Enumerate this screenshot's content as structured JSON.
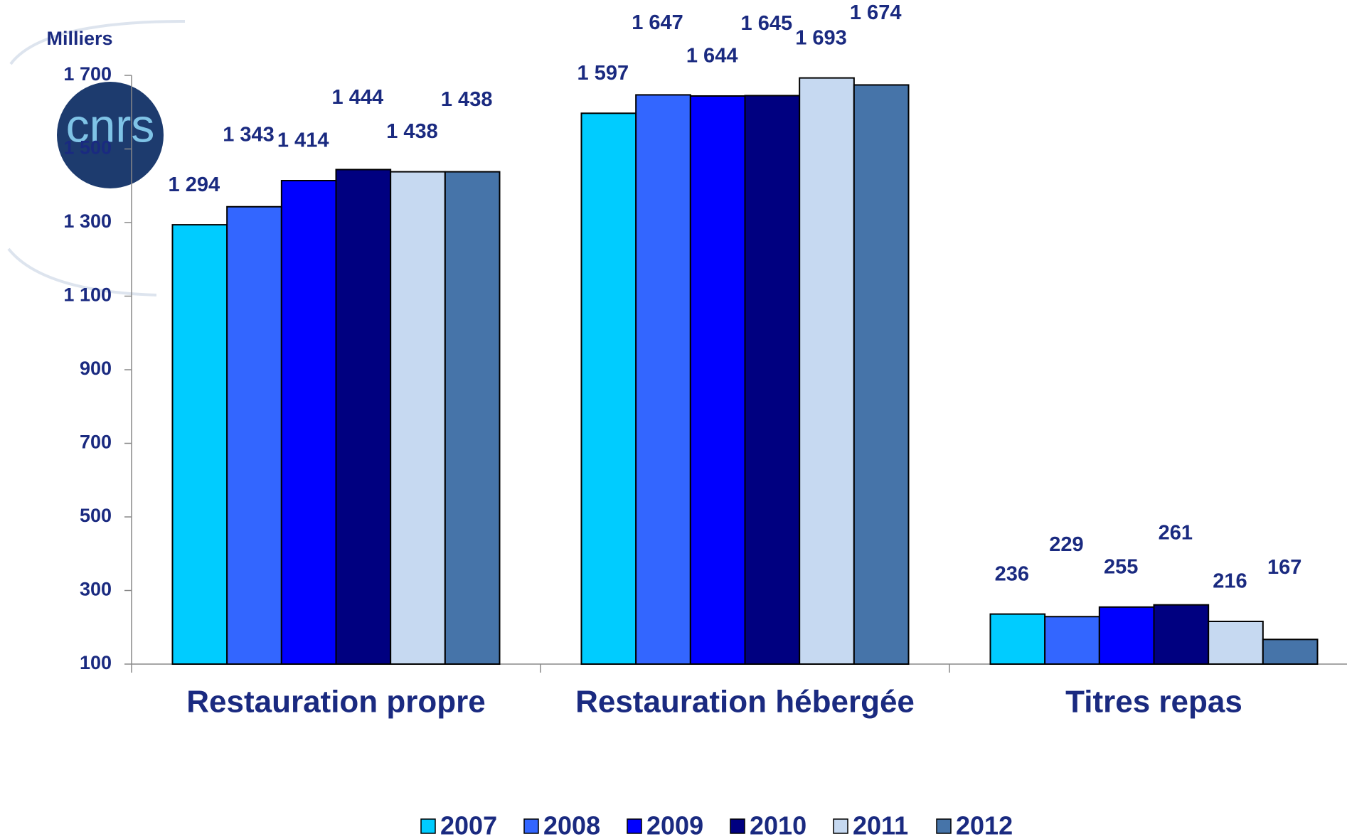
{
  "logo": "cnrs",
  "chart_data": {
    "type": "bar",
    "y_label": "Milliers",
    "categories": [
      "Restauration propre",
      "Restauration hébergée",
      "Titres repas"
    ],
    "series": [
      {
        "name": "2007",
        "color": "#00ccff",
        "values": [
          1294,
          1597,
          236
        ],
        "value_labels": [
          "1 294",
          "1 597",
          "236"
        ]
      },
      {
        "name": "2008",
        "color": "#3366ff",
        "values": [
          1343,
          1647,
          229
        ],
        "value_labels": [
          "1 343",
          "1 647",
          "229"
        ]
      },
      {
        "name": "2009",
        "color": "#0000ff",
        "values": [
          1414,
          1644,
          255
        ],
        "value_labels": [
          "1 414",
          "1 644",
          "255"
        ]
      },
      {
        "name": "2010",
        "color": "#000080",
        "values": [
          1444,
          1645,
          261
        ],
        "value_labels": [
          "1 444",
          "1 645",
          "261"
        ]
      },
      {
        "name": "2011",
        "color": "#c6d9f1",
        "values": [
          1438,
          1693,
          216
        ],
        "value_labels": [
          "1 438",
          "1 693",
          "216"
        ]
      },
      {
        "name": "2012",
        "color": "#4674a9",
        "values": [
          1438,
          1674,
          167
        ],
        "value_labels": [
          "1 438",
          "1 674",
          "167"
        ]
      }
    ],
    "ylim": [
      100,
      1700
    ],
    "yticks": [
      100,
      300,
      500,
      700,
      900,
      {
        "value": 1100,
        "label": "1 100"
      },
      {
        "value": 1300,
        "label": "1 300"
      },
      {
        "value": 1500,
        "label": "1 500"
      },
      {
        "value": 1700,
        "label": "1 700"
      }
    ],
    "grid": false,
    "legend": "bottom"
  }
}
